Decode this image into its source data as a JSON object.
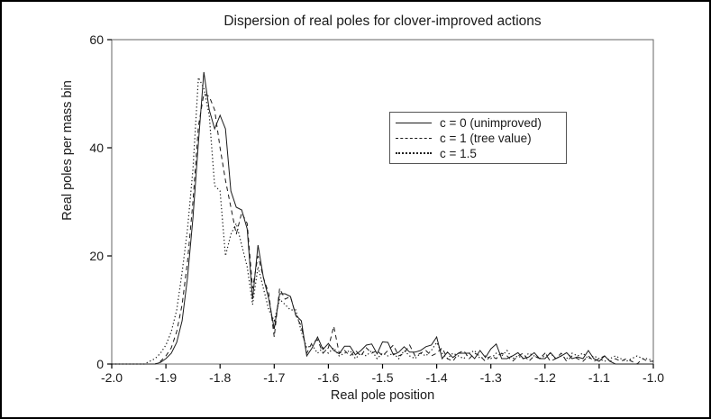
{
  "figure": {
    "title": "Dispersion of real poles for clover-improved actions",
    "xlabel": "Real pole position",
    "ylabel": "Real poles per mass bin"
  },
  "legend": {
    "items": [
      {
        "label": "c = 0 (unimproved)",
        "style": "solid"
      },
      {
        "label": "c = 1 (tree value)",
        "style": "dashed"
      },
      {
        "label": "c = 1.5",
        "style": "dotted"
      }
    ]
  },
  "colors": {
    "line": "#1a1a1a",
    "frame": "#666666",
    "tick": "#000000",
    "background": "#ffffff",
    "outer_border": "#000000"
  },
  "chart_data": {
    "type": "line",
    "title": "Dispersion of real poles for clover-improved actions",
    "xlabel": "Real pole position",
    "ylabel": "Real poles per mass bin",
    "xlim": [
      -2.0,
      -1.0
    ],
    "ylim": [
      0,
      60
    ],
    "x_ticks": [
      "-2.0",
      "-1.9",
      "-1.8",
      "-1.7",
      "-1.6",
      "-1.5",
      "-1.4",
      "-1.3",
      "-1.2",
      "-1.1",
      "-1.0"
    ],
    "y_ticks": [
      "0",
      "20",
      "40",
      "60"
    ],
    "grid": false,
    "legend_position": "upper center-right inside",
    "x_start": -2.0,
    "x_step": 0.01,
    "series": [
      {
        "name": "c = 0 (unimproved)",
        "line_style": "solid",
        "values": [
          0,
          0,
          0,
          0,
          0,
          0,
          0,
          0,
          0,
          0.3,
          1,
          2,
          4,
          8,
          16,
          27,
          41,
          54,
          47,
          43.5,
          46,
          43.5,
          32,
          29,
          28.5,
          25,
          12,
          22,
          16,
          12,
          6.5,
          13,
          13,
          12.5,
          9,
          8,
          1.5,
          3,
          5,
          2.7,
          3.8,
          2.5,
          1.9,
          3.3,
          3.3,
          1.7,
          2.5,
          3.5,
          3.7,
          1.9,
          4.1,
          4,
          1.7,
          2.2,
          3.2,
          2.2,
          2.2,
          2.5,
          3.2,
          3.5,
          5,
          1,
          2.2,
          1.2,
          2,
          2,
          2,
          1,
          2.5,
          1.2,
          2.8,
          3.7,
          1,
          1,
          1.5,
          2.1,
          1,
          1.3,
          2.1,
          1,
          1,
          2.1,
          1,
          1.5,
          2.1,
          1,
          1.3,
          1,
          2.5,
          1,
          0.5,
          1.5,
          0.5,
          0,
          0,
          0,
          0,
          0,
          0,
          0,
          0
        ]
      },
      {
        "name": "c = 1 (tree value)",
        "line_style": "dashed",
        "values": [
          0,
          0,
          0,
          0,
          0,
          0,
          0,
          0,
          0,
          0.5,
          1.5,
          3,
          6,
          11,
          19,
          30,
          44,
          50,
          49.5,
          47,
          40,
          34,
          29,
          24,
          28,
          26,
          14,
          20,
          16,
          13,
          5,
          14,
          12,
          12.5,
          9,
          7,
          2,
          4,
          4.5,
          2,
          3,
          7,
          2,
          2.5,
          1.5,
          2.5,
          1.5,
          3,
          2,
          2.5,
          1.5,
          2.5,
          3.5,
          1.5,
          2,
          3.5,
          1.5,
          2,
          2.5,
          1.5,
          2,
          3,
          1,
          0.5,
          2,
          2.5,
          1,
          2,
          1.5,
          0.5,
          1.5,
          1,
          2,
          1.5,
          0.5,
          1.5,
          2,
          0.5,
          1.5,
          1,
          2,
          0.5,
          1,
          2,
          0.5,
          1.5,
          1,
          0.5,
          1.5,
          0.5,
          1,
          1.5,
          0.5,
          1,
          0.5,
          1,
          0.5,
          0,
          1,
          0.5,
          0.5
        ]
      },
      {
        "name": "c = 1.5",
        "line_style": "dotted",
        "values": [
          0,
          0,
          0,
          0,
          0,
          0,
          0,
          0.5,
          1,
          2,
          3.5,
          6,
          10,
          17,
          25,
          36,
          53,
          51,
          46,
          33,
          32,
          20,
          24,
          26,
          22,
          18,
          11,
          18,
          14,
          10,
          8,
          12,
          11,
          10,
          10,
          6,
          3,
          3.5,
          2,
          3,
          2,
          3,
          1.5,
          2,
          2.5,
          1,
          2,
          1.5,
          2.5,
          1,
          2,
          1.5,
          2,
          1,
          2.5,
          1.5,
          1,
          2,
          1.5,
          2.5,
          4,
          2,
          1,
          2,
          1.5,
          1,
          2,
          2.5,
          1,
          1.5,
          1,
          2,
          1.5,
          2.5,
          1,
          1.5,
          1,
          2,
          1.5,
          1,
          1.5,
          2,
          1,
          1.5,
          1,
          2,
          1.5,
          2,
          1,
          1.5,
          1,
          0.5,
          1,
          1.5,
          1,
          0.5,
          1,
          1.5,
          1,
          1,
          0.5
        ]
      }
    ]
  }
}
